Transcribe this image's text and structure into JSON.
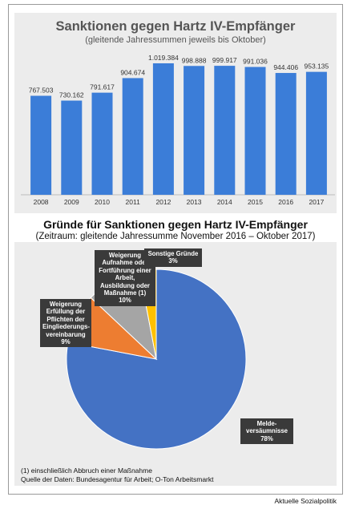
{
  "chart_data": [
    {
      "type": "bar",
      "title": "Sanktionen gegen Hartz IV-Empfänger",
      "subtitle": "(gleitende Jahressummen jeweils bis Oktober)",
      "categories": [
        "2008",
        "2009",
        "2010",
        "2011",
        "2012",
        "2013",
        "2014",
        "2015",
        "2016",
        "2017"
      ],
      "values": [
        767503,
        730162,
        791617,
        904674,
        1019384,
        998888,
        999917,
        991036,
        944406,
        953135
      ],
      "value_labels": [
        "767.503",
        "730.162",
        "791.617",
        "904.674",
        "1.019.384",
        "998.888",
        "999.917",
        "991.036",
        "944.406",
        "953.135"
      ],
      "ylim": [
        0,
        1100000
      ],
      "grid": false,
      "color": "#3b7dd8"
    },
    {
      "type": "pie",
      "title": "Gründe für Sanktionen gegen Hartz IV-Empfänger",
      "subtitle": "(Zeitraum: gleitende Jahressumme November 2016 – Oktober 2017)",
      "slices": [
        {
          "label": "Melde-\nversäumnisse\n78%",
          "value": 78,
          "color": "#4472c4"
        },
        {
          "label": "Weigerung\nErfüllung der\nPflichten der\nEingliederungs-\nvereinbarung\n9%",
          "value": 9,
          "color": "#ed7d31"
        },
        {
          "label": "Weigerung\nAufnahme oder\nFortführung einer\nArbeit,\nAusbildung oder\nMaßnahme (1)\n10%",
          "value": 10,
          "color": "#a5a5a5"
        },
        {
          "label": "Sonstige Gründe\n3%",
          "value": 3,
          "color": "#ffc000"
        }
      ]
    }
  ],
  "footnotes": {
    "note": "(1) einschließlich Abbruch einer Maßnahme",
    "source": "Quelle der Daten: Bundesagentur für Arbeit; O-Ton Arbeitsmarkt"
  },
  "credit": "Aktuelle Sozialpolitik"
}
